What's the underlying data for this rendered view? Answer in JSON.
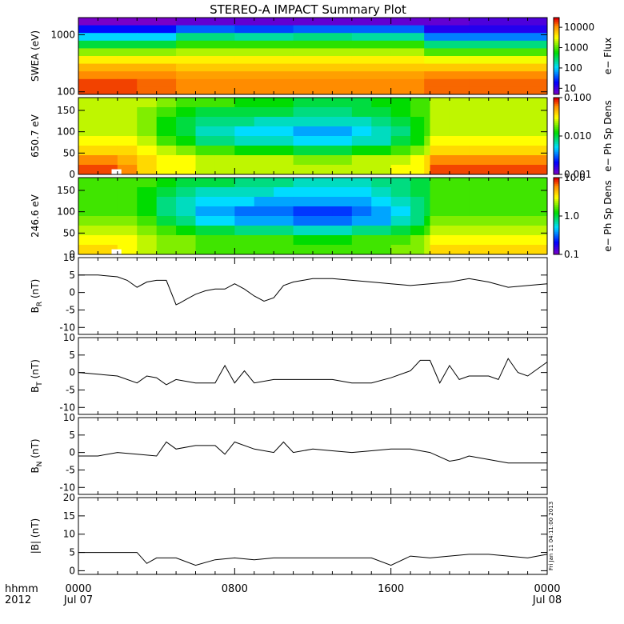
{
  "figure": {
    "title": "STEREO-A IMPACT Summary Plot",
    "time_label": "hhmm",
    "year_label": "2012",
    "x_ticks": [
      "0000",
      "0800",
      "1600",
      "0000"
    ],
    "x_dates": [
      "Jul 07",
      "",
      "",
      "Jul 08"
    ],
    "footer_stamp": "Fri Jan 11 04:11:00 2013"
  },
  "chart_data": [
    {
      "id": "swea",
      "type": "heatmap",
      "title": "",
      "ylabel": "SWEA (eV)",
      "y_scale": "log",
      "ylim": [
        90,
        2000
      ],
      "y_ticks": [
        "1000",
        "100"
      ],
      "y_tick_values": [
        1000,
        100
      ],
      "colorbar": {
        "label": "e− Flux",
        "scale": "log",
        "ticks": [
          "10000",
          "1000",
          "100",
          "10"
        ],
        "tick_values": [
          10000,
          1000,
          100,
          10
        ],
        "range": [
          5,
          30000
        ]
      },
      "x_hours": [
        0,
        2,
        3,
        5,
        8,
        11,
        14,
        16,
        17.7,
        20,
        24
      ],
      "rows_energy_eV": [
        2000,
        1000,
        700,
        500,
        300,
        200,
        150,
        120,
        100,
        90
      ],
      "values_log": [
        [
          0.7,
          0.7,
          0.7,
          0.8,
          0.8,
          0.8,
          0.8,
          0.8,
          0.8,
          0.9,
          0.9
        ],
        [
          1.3,
          1.3,
          1.3,
          1.6,
          1.5,
          1.6,
          1.6,
          1.6,
          1.1,
          1.1,
          1.1
        ],
        [
          2.0,
          2.0,
          2.0,
          2.4,
          2.3,
          2.4,
          2.3,
          2.3,
          1.7,
          1.7,
          1.7
        ],
        [
          2.6,
          2.6,
          2.6,
          2.9,
          2.9,
          2.9,
          2.9,
          2.9,
          2.4,
          2.4,
          2.4
        ],
        [
          3.2,
          3.2,
          3.2,
          3.3,
          3.3,
          3.3,
          3.3,
          3.3,
          3.0,
          3.0,
          3.0
        ],
        [
          3.6,
          3.6,
          3.6,
          3.6,
          3.6,
          3.6,
          3.6,
          3.6,
          3.5,
          3.5,
          3.5
        ],
        [
          3.9,
          3.9,
          3.9,
          3.8,
          3.8,
          3.8,
          3.8,
          3.8,
          3.8,
          3.8,
          3.8
        ],
        [
          4.1,
          4.1,
          4.1,
          4.0,
          4.0,
          4.0,
          4.0,
          4.0,
          4.1,
          4.1,
          4.1
        ],
        [
          4.3,
          4.3,
          4.2,
          4.1,
          4.1,
          4.1,
          4.1,
          4.1,
          4.2,
          4.2,
          4.2
        ],
        [
          4.3,
          4.3,
          4.2,
          4.1,
          4.1,
          4.1,
          4.1,
          4.1,
          4.2,
          4.2,
          4.2
        ]
      ]
    },
    {
      "id": "pad_650",
      "type": "heatmap",
      "title": "",
      "ylabel": "650.7 eV",
      "y_scale": "linear",
      "ylim": [
        0,
        180
      ],
      "y_ticks": [
        "150",
        "100",
        "50",
        "0"
      ],
      "y_tick_values": [
        150,
        100,
        50,
        0
      ],
      "colorbar": {
        "label": "e− Ph Sp Dens",
        "scale": "log",
        "ticks": [
          "0.100",
          "0.010",
          "0.001"
        ],
        "tick_values": [
          0.1,
          0.01,
          0.001
        ],
        "range": [
          0.001,
          0.1
        ]
      },
      "x_hours": [
        0,
        1,
        2,
        3,
        4,
        5,
        6,
        7,
        8,
        9,
        10,
        11,
        12,
        13,
        14,
        15,
        16,
        17,
        17.7,
        18,
        19,
        20,
        21,
        22,
        23,
        24
      ],
      "rows_angle_deg": [
        175,
        150,
        125,
        100,
        75,
        50,
        25,
        5
      ],
      "values_log": [
        [
          -1.6,
          -1.6,
          -1.6,
          -1.6,
          -1.7,
          -1.8,
          -1.8,
          -1.8,
          -1.9,
          -1.9,
          -1.9,
          -2.0,
          -2.0,
          -2.0,
          -2.0,
          -1.9,
          -1.9,
          -1.8,
          -1.8,
          -1.6,
          -1.6,
          -1.6,
          -1.6,
          -1.6,
          -1.6,
          -1.6
        ],
        [
          -1.6,
          -1.6,
          -1.6,
          -1.7,
          -1.8,
          -1.9,
          -2.0,
          -2.0,
          -2.0,
          -2.0,
          -2.0,
          -2.1,
          -2.1,
          -2.1,
          -2.0,
          -2.0,
          -1.9,
          -1.8,
          -1.8,
          -1.6,
          -1.6,
          -1.6,
          -1.6,
          -1.6,
          -1.6,
          -1.6
        ],
        [
          -1.6,
          -1.6,
          -1.6,
          -1.7,
          -1.9,
          -2.0,
          -2.1,
          -2.1,
          -2.1,
          -2.2,
          -2.2,
          -2.2,
          -2.2,
          -2.2,
          -2.2,
          -2.1,
          -2.0,
          -1.9,
          -1.8,
          -1.6,
          -1.6,
          -1.6,
          -1.6,
          -1.6,
          -1.6,
          -1.6
        ],
        [
          -1.6,
          -1.6,
          -1.6,
          -1.7,
          -1.9,
          -2.0,
          -2.2,
          -2.2,
          -2.3,
          -2.3,
          -2.3,
          -2.4,
          -2.4,
          -2.4,
          -2.3,
          -2.2,
          -2.1,
          -1.9,
          -1.8,
          -1.6,
          -1.6,
          -1.6,
          -1.6,
          -1.6,
          -1.6,
          -1.6
        ],
        [
          -1.5,
          -1.5,
          -1.5,
          -1.6,
          -1.8,
          -1.9,
          -2.1,
          -2.1,
          -2.2,
          -2.2,
          -2.2,
          -2.3,
          -2.3,
          -2.3,
          -2.2,
          -2.2,
          -2.0,
          -1.9,
          -1.7,
          -1.5,
          -1.5,
          -1.5,
          -1.5,
          -1.5,
          -1.5,
          -1.5
        ],
        [
          -1.4,
          -1.4,
          -1.4,
          -1.5,
          -1.6,
          -1.7,
          -1.8,
          -1.8,
          -1.9,
          -1.9,
          -1.9,
          -2.0,
          -2.0,
          -2.0,
          -1.9,
          -1.9,
          -1.8,
          -1.7,
          -1.6,
          -1.4,
          -1.4,
          -1.4,
          -1.4,
          -1.4,
          -1.4,
          -1.4
        ],
        [
          -1.2,
          -1.2,
          -1.3,
          -1.4,
          -1.5,
          -1.5,
          -1.6,
          -1.6,
          -1.6,
          -1.6,
          -1.6,
          -1.7,
          -1.7,
          -1.7,
          -1.6,
          -1.6,
          -1.6,
          -1.5,
          -1.4,
          -1.2,
          -1.2,
          -1.2,
          -1.2,
          -1.2,
          -1.2,
          -1.2
        ],
        [
          -1.1,
          -1.1,
          -1.2,
          -1.4,
          -1.5,
          -1.5,
          -1.6,
          -1.6,
          -1.6,
          -1.6,
          -1.6,
          -1.6,
          -1.6,
          -1.6,
          -1.6,
          -1.6,
          -1.5,
          -1.5,
          -1.4,
          -1.1,
          -1.1,
          -1.1,
          -1.1,
          -1.1,
          -1.1,
          -1.1
        ]
      ],
      "data_gap": {
        "x_hours": [
          1.7,
          2.2
        ],
        "y_deg": [
          0,
          12
        ]
      }
    },
    {
      "id": "pad_246",
      "type": "heatmap",
      "title": "",
      "ylabel": "246.6 eV",
      "y_scale": "linear",
      "ylim": [
        0,
        180
      ],
      "y_ticks": [
        "150",
        "100",
        "50",
        "0"
      ],
      "y_tick_values": [
        150,
        100,
        50,
        0
      ],
      "colorbar": {
        "label": "e− Ph Sp Dens",
        "scale": "log",
        "ticks": [
          "10.0",
          "1.0",
          "0.1"
        ],
        "tick_values": [
          10,
          1,
          0.1
        ],
        "range": [
          0.1,
          10
        ]
      },
      "x_hours": [
        0,
        1,
        2,
        3,
        4,
        5,
        6,
        7,
        8,
        9,
        10,
        11,
        12,
        13,
        14,
        15,
        16,
        17,
        17.7,
        18,
        19,
        20,
        21,
        22,
        23,
        24
      ],
      "rows_angle_deg": [
        175,
        150,
        125,
        100,
        75,
        50,
        25,
        5
      ],
      "values_log": [
        [
          0.2,
          0.2,
          0.2,
          0.2,
          0.1,
          0.0,
          0.0,
          0.0,
          -0.1,
          -0.1,
          -0.1,
          -0.2,
          -0.2,
          -0.2,
          -0.2,
          -0.1,
          -0.1,
          0.0,
          0.0,
          0.2,
          0.2,
          0.2,
          0.2,
          0.2,
          0.2,
          0.2
        ],
        [
          0.2,
          0.2,
          0.2,
          0.1,
          0.0,
          -0.1,
          -0.2,
          -0.2,
          -0.2,
          -0.2,
          -0.3,
          -0.3,
          -0.3,
          -0.3,
          -0.3,
          -0.2,
          -0.1,
          0.0,
          0.0,
          0.2,
          0.2,
          0.2,
          0.2,
          0.2,
          0.2,
          0.2
        ],
        [
          0.2,
          0.2,
          0.2,
          0.1,
          -0.1,
          -0.2,
          -0.3,
          -0.3,
          -0.3,
          -0.4,
          -0.4,
          -0.4,
          -0.4,
          -0.4,
          -0.4,
          -0.3,
          -0.2,
          -0.1,
          0.0,
          0.2,
          0.2,
          0.2,
          0.2,
          0.2,
          0.2,
          0.2
        ],
        [
          0.2,
          0.2,
          0.2,
          0.1,
          -0.1,
          -0.2,
          -0.4,
          -0.4,
          -0.5,
          -0.5,
          -0.5,
          -0.6,
          -0.6,
          -0.6,
          -0.5,
          -0.4,
          -0.3,
          -0.1,
          0.0,
          0.2,
          0.2,
          0.2,
          0.2,
          0.2,
          0.2,
          0.2
        ],
        [
          0.3,
          0.3,
          0.3,
          0.2,
          0.0,
          -0.1,
          -0.3,
          -0.3,
          -0.4,
          -0.4,
          -0.4,
          -0.5,
          -0.5,
          -0.5,
          -0.4,
          -0.4,
          -0.2,
          -0.1,
          0.1,
          0.3,
          0.3,
          0.3,
          0.3,
          0.3,
          0.3,
          0.3
        ],
        [
          0.4,
          0.4,
          0.4,
          0.3,
          0.2,
          0.1,
          0.0,
          0.0,
          -0.1,
          -0.1,
          -0.1,
          -0.2,
          -0.2,
          -0.2,
          -0.1,
          -0.1,
          0.0,
          0.1,
          0.2,
          0.4,
          0.4,
          0.4,
          0.4,
          0.4,
          0.4,
          0.4
        ],
        [
          0.5,
          0.5,
          0.5,
          0.4,
          0.3,
          0.3,
          0.2,
          0.2,
          0.2,
          0.2,
          0.2,
          0.1,
          0.1,
          0.1,
          0.2,
          0.2,
          0.2,
          0.3,
          0.4,
          0.5,
          0.5,
          0.5,
          0.5,
          0.5,
          0.5,
          0.5
        ],
        [
          0.6,
          0.6,
          0.5,
          0.4,
          0.3,
          0.3,
          0.2,
          0.2,
          0.2,
          0.2,
          0.2,
          0.2,
          0.2,
          0.2,
          0.2,
          0.2,
          0.3,
          0.3,
          0.4,
          0.6,
          0.6,
          0.6,
          0.6,
          0.6,
          0.6,
          0.6
        ]
      ],
      "data_gap": {
        "x_hours": [
          1.7,
          2.2
        ],
        "y_deg": [
          0,
          12
        ]
      }
    },
    {
      "id": "br",
      "type": "line",
      "title": "",
      "ylabel": "B_R (nT)",
      "ylabel_parts": {
        "main": "B",
        "sub": "R",
        "unit": " (nT)"
      },
      "ylim": [
        -12,
        10
      ],
      "y_ticks": [
        "10",
        "5",
        "0",
        "-5",
        "-10"
      ],
      "y_tick_values": [
        10,
        5,
        0,
        -5,
        -10
      ],
      "x": [
        0,
        1,
        2,
        2.5,
        3,
        3.5,
        4,
        4.5,
        5,
        5.2,
        5.5,
        6,
        6.5,
        7,
        7.5,
        8,
        8.5,
        9,
        9.5,
        10,
        10.5,
        11,
        11.5,
        12,
        13,
        14,
        15,
        16,
        17,
        18,
        19,
        20,
        21,
        22,
        23,
        24
      ],
      "y": [
        5,
        5,
        4.5,
        3.5,
        1.5,
        3,
        3.5,
        3.5,
        -3.5,
        -3,
        -2,
        -0.5,
        0.5,
        1,
        1,
        2.5,
        1,
        -1,
        -2.5,
        -1.5,
        2,
        3,
        3.5,
        4,
        4,
        3.5,
        3,
        2.5,
        2,
        2.5,
        3,
        4,
        3,
        1.5,
        2,
        2.5
      ]
    },
    {
      "id": "bt",
      "type": "line",
      "title": "",
      "ylabel": "B_T (nT)",
      "ylabel_parts": {
        "main": "B",
        "sub": "T",
        "unit": " (nT)"
      },
      "ylim": [
        -12,
        10
      ],
      "y_ticks": [
        "10",
        "5",
        "0",
        "-5",
        "-10"
      ],
      "y_tick_values": [
        10,
        5,
        0,
        -5,
        -10
      ],
      "x": [
        0,
        1,
        2,
        3,
        3.5,
        4,
        4.5,
        5,
        6,
        7,
        7.5,
        8,
        8.5,
        9,
        10,
        11,
        12,
        13,
        14,
        15,
        16,
        17,
        17.5,
        18,
        18.5,
        19,
        19.5,
        20,
        21,
        21.5,
        22,
        22.5,
        23,
        24
      ],
      "y": [
        0,
        -0.5,
        -1,
        -3,
        -1,
        -1.5,
        -3.5,
        -2,
        -3,
        -3,
        2,
        -3,
        0.5,
        -3,
        -2,
        -2,
        -2,
        -2,
        -3,
        -3,
        -1.5,
        0.5,
        3.5,
        3.5,
        -3,
        2,
        -2,
        -1,
        -1,
        -2,
        4,
        0,
        -1,
        3
      ]
    },
    {
      "id": "bn",
      "type": "line",
      "title": "",
      "ylabel": "B_N (nT)",
      "ylabel_parts": {
        "main": "B",
        "sub": "N",
        "unit": " (nT)"
      },
      "ylim": [
        -12,
        10
      ],
      "y_ticks": [
        "10",
        "5",
        "0",
        "-5",
        "-10"
      ],
      "y_tick_values": [
        10,
        5,
        0,
        -5,
        -10
      ],
      "x": [
        0,
        1,
        2,
        3,
        4,
        4.5,
        5,
        6,
        7,
        7.5,
        8,
        9,
        10,
        10.5,
        11,
        12,
        13,
        14,
        15,
        16,
        17,
        18,
        19,
        19.5,
        20,
        21,
        22,
        23,
        24
      ],
      "y": [
        -1,
        -1,
        0,
        -0.5,
        -1,
        3,
        1,
        2,
        2,
        -0.5,
        3,
        1,
        0,
        3,
        0,
        1,
        0.5,
        0,
        0.5,
        1,
        1,
        0,
        -2.5,
        -2,
        -1,
        -2,
        -3,
        -3,
        -3
      ]
    },
    {
      "id": "bmag",
      "type": "line",
      "title": "",
      "ylabel": "|B| (nT)",
      "ylim": [
        -1,
        20
      ],
      "y_ticks": [
        "20",
        "15",
        "10",
        "5",
        "0"
      ],
      "y_tick_values": [
        20,
        15,
        10,
        5,
        0
      ],
      "x": [
        0,
        1,
        2,
        3,
        3.5,
        4,
        5,
        6,
        7,
        8,
        9,
        10,
        11,
        12,
        13,
        14,
        15,
        16,
        17,
        18,
        19,
        20,
        21,
        22,
        23,
        24
      ],
      "y": [
        5,
        5,
        5,
        5,
        2,
        3.5,
        3.5,
        1.5,
        3,
        3.5,
        3,
        3.5,
        3.5,
        3.5,
        3.5,
        3.5,
        3.5,
        1.5,
        4,
        3.5,
        4,
        4.5,
        4.5,
        4,
        3.5,
        4.5
      ]
    }
  ]
}
